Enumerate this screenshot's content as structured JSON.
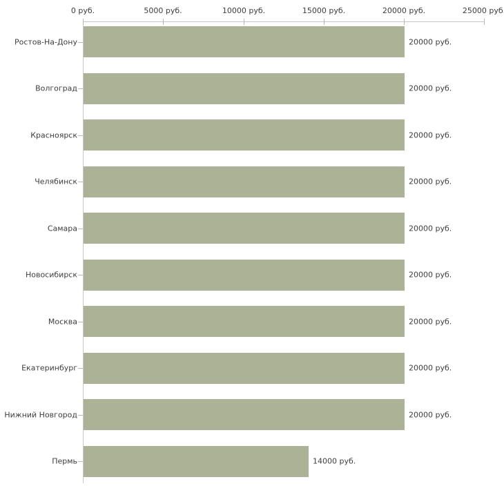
{
  "chart_data": {
    "type": "bar",
    "orientation": "horizontal",
    "title": "",
    "categories": [
      "Ростов-На-Дону",
      "Волгоград",
      "Красноярск",
      "Челябинск",
      "Самара",
      "Новосибирск",
      "Москва",
      "Екатеринбург",
      "Нижний Новгород",
      "Пермь"
    ],
    "values": [
      20000,
      20000,
      20000,
      20000,
      20000,
      20000,
      20000,
      20000,
      20000,
      14000
    ],
    "value_labels": [
      "20000 руб.",
      "20000 руб.",
      "20000 руб.",
      "20000 руб.",
      "20000 руб.",
      "20000 руб.",
      "20000 руб.",
      "20000 руб.",
      "20000 руб.",
      "14000 руб."
    ],
    "x_axis": {
      "xlim": [
        0,
        25000
      ],
      "tick_values": [
        0,
        5000,
        10000,
        15000,
        20000,
        25000
      ],
      "tick_labels": [
        "0 руб.",
        "5000 руб.",
        "10000 руб.",
        "15000 руб.",
        "20000 руб.",
        "25000 руб."
      ],
      "position": "top",
      "unit": "руб."
    },
    "grid": false,
    "legend": "none",
    "colors": {
      "bar": "#acb296",
      "axis_line": "#c6c6c6",
      "tick_mark": "#b7b8a9",
      "text": "#3d3d3d",
      "background": "#ffffff"
    }
  }
}
